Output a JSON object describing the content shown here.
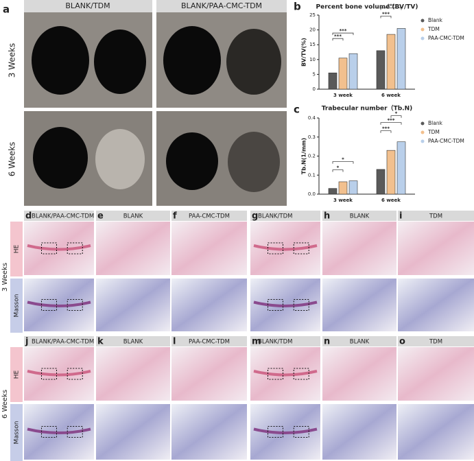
{
  "chart_data": [
    {
      "type": "bar",
      "letter": "b",
      "title": "Percent bone volume (BV/TV)",
      "y_label": "BV/TV(%)",
      "categories": [
        "3 week",
        "6 week"
      ],
      "series": [
        {
          "name": "Blank",
          "color": "#5a5a5a",
          "values": [
            5.5,
            13
          ]
        },
        {
          "name": "TDM",
          "color": "#f2c08e",
          "values": [
            10.5,
            18.5
          ]
        },
        {
          "name": "PAA-CMC-TDM",
          "color": "#b9cfea",
          "values": [
            12,
            20.5
          ]
        }
      ],
      "ylim": [
        0,
        25
      ],
      "yticks": [
        0,
        5,
        10,
        15,
        20,
        25
      ],
      "annotations": [
        "***",
        "***",
        "***",
        "***"
      ]
    },
    {
      "type": "bar",
      "letter": "c",
      "title": "Trabecular number（Tb.N)",
      "y_label": "Tb.N(1/mm)",
      "categories": [
        "3 week",
        "6 week"
      ],
      "series": [
        {
          "name": "Blank",
          "color": "#5a5a5a",
          "values": [
            0.03,
            0.13
          ]
        },
        {
          "name": "TDM",
          "color": "#f2c08e",
          "values": [
            0.065,
            0.23
          ]
        },
        {
          "name": "PAA-CMC-TDM",
          "color": "#b9cfea",
          "values": [
            0.07,
            0.275
          ]
        }
      ],
      "ylim": [
        0,
        0.4
      ],
      "yticks": [
        {
          "value": 0,
          "label": "0.0"
        },
        0.1,
        0.2,
        0.3,
        0.4
      ],
      "annotations": [
        "*",
        "*",
        "***",
        "***",
        "*"
      ]
    }
  ],
  "micro_ct": {
    "letter": "a",
    "columns": [
      "BLANK/TDM",
      "BLANK/PAA-CMC-TDM"
    ],
    "rows": [
      "3 Weeks",
      "6 Weeks"
    ]
  },
  "histology": {
    "stains": [
      "HE",
      "Masson"
    ],
    "groups": [
      {
        "label": "3 Weeks",
        "panels": [
          {
            "letter": "d",
            "header": "BLANK/PAA-CMC-TDM"
          },
          {
            "letter": "e",
            "header": "BLANK"
          },
          {
            "letter": "f",
            "header": "PAA-CMC-TDM"
          },
          {
            "letter": "g",
            "header": "BLANK/TDM"
          },
          {
            "letter": "h",
            "header": "BLANK"
          },
          {
            "letter": "i",
            "header": "TDM"
          }
        ]
      },
      {
        "label": "6 Weeks",
        "panels": [
          {
            "letter": "j",
            "header": "BLANK/PAA-CMC-TDM"
          },
          {
            "letter": "k",
            "header": "BLANK"
          },
          {
            "letter": "l",
            "header": "PAA-CMC-TDM"
          },
          {
            "letter": "m",
            "header": "BLANK/TDM"
          },
          {
            "letter": "n",
            "header": "BLANK"
          },
          {
            "letter": "o",
            "header": "TDM"
          }
        ]
      }
    ]
  }
}
